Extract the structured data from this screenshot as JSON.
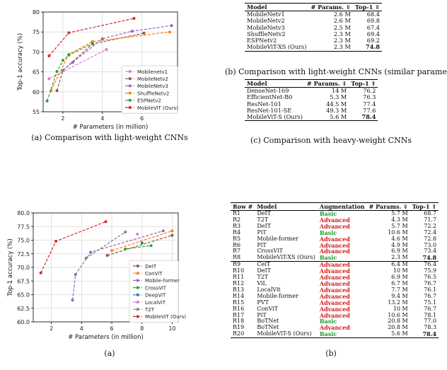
{
  "chart_data": [
    {
      "id": "a_top",
      "type": "line",
      "xlabel": "# Parameters (in million)",
      "ylabel": "Top-1 accuracy (%)",
      "xlim": [
        1,
        7.8
      ],
      "ylim": [
        55,
        80
      ],
      "xticks": [
        2,
        4,
        6
      ],
      "yticks": [
        55,
        60,
        65,
        70,
        75,
        80
      ],
      "tick_labels_x": [
        "2",
        "4",
        "6"
      ],
      "tick_labels_y": [
        "55",
        "60",
        "65",
        "70",
        "75",
        "80"
      ],
      "legend": "lower-right",
      "series": [
        {
          "name": "Mobilenetv1",
          "color": "#e377c2",
          "x": [
            1.3,
            4.2
          ],
          "y": [
            63.3,
            70.6
          ]
        },
        {
          "name": "MobileNetv2",
          "color": "#8c564b",
          "x": [
            1.7,
            2.0,
            3.5,
            6.1
          ],
          "y": [
            60.3,
            65.4,
            72.0,
            74.7
          ]
        },
        {
          "name": "MobileNetv3",
          "color": "#9467bd",
          "x": [
            2.0,
            2.5,
            4.0,
            5.5,
            7.5
          ],
          "y": [
            65.4,
            67.4,
            73.3,
            75.2,
            76.6
          ]
        },
        {
          "name": "ShuffleNetv2",
          "color": "#ff7f0e",
          "x": [
            1.4,
            2.3,
            3.5,
            7.4
          ],
          "y": [
            60.3,
            69.4,
            72.6,
            75.0
          ]
        },
        {
          "name": "ESPNetv2",
          "color": "#2ca02c",
          "x": [
            1.2,
            1.7,
            2.0,
            2.3,
            3.5
          ],
          "y": [
            57.7,
            65.1,
            67.9,
            69.2,
            72.1
          ]
        },
        {
          "name": "MobileViT (Ours)",
          "color": "#d62728",
          "x": [
            1.3,
            2.3,
            5.6
          ],
          "y": [
            69.0,
            74.8,
            78.4
          ]
        }
      ]
    },
    {
      "id": "a_bottom",
      "type": "line",
      "xlabel": "# Parameters (in million)",
      "ylabel": "Top-1 accuracy (%)",
      "xlim": [
        0.8,
        10.4
      ],
      "ylim": [
        60,
        80
      ],
      "xticks": [
        2,
        4,
        6,
        8,
        10
      ],
      "yticks": [
        60.0,
        62.5,
        65.0,
        67.5,
        70.0,
        72.5,
        75.0,
        77.5,
        80.0
      ],
      "tick_labels_x": [
        "2",
        "4",
        "6",
        "8",
        "10"
      ],
      "tick_labels_y": [
        "60.0",
        "62.5",
        "65.0",
        "67.5",
        "70.0",
        "72.5",
        "75.0",
        "77.5",
        "80.0"
      ],
      "legend": "lower-right",
      "series": [
        {
          "name": "DeIT",
          "color": "#8c564b",
          "x": [
            5.7,
            10.0
          ],
          "y": [
            72.2,
            75.9
          ]
        },
        {
          "name": "ConViT",
          "color": "#ff7f0e",
          "x": [
            6.0,
            10.0
          ],
          "y": [
            73.1,
            76.7
          ]
        },
        {
          "name": "Mobile-former",
          "color": "#9467bd",
          "x": [
            3.4,
            3.6,
            4.6,
            9.4
          ],
          "y": [
            64.0,
            68.7,
            72.8,
            76.7
          ]
        },
        {
          "name": "CrossViT",
          "color": "#2ca02c",
          "x": [
            6.9,
            8.6
          ],
          "y": [
            73.4,
            74.0
          ]
        },
        {
          "name": "DeepViT",
          "color": "#1f77b4",
          "x": [
            8.0
          ],
          "y": [
            74.5
          ]
        },
        {
          "name": "LocalViT",
          "color": "#e377c2",
          "x": [
            7.7
          ],
          "y": [
            76.1
          ]
        },
        {
          "name": "T2T",
          "color": "#7f7f7f",
          "x": [
            4.3,
            6.9
          ],
          "y": [
            71.7,
            76.5
          ]
        },
        {
          "name": "MobileViT (Ours)",
          "color": "#d62728",
          "x": [
            1.3,
            2.3,
            5.6
          ],
          "y": [
            69.0,
            74.8,
            78.4
          ]
        }
      ]
    }
  ],
  "captions": {
    "a_top": "(a) Comparison with light-weight CNNs",
    "b_top": "(b) Comparison with light-weight CNNs (similar parameters)",
    "c_top": "(c) Comparison with heavy-weight CNNs",
    "a_bottom": "(a)",
    "b_bottom": "(b)"
  },
  "table_b": {
    "headers": [
      "Model",
      "# Params. ⇓",
      "Top-1 ⇑"
    ],
    "rows": [
      [
        "MobileNetv1",
        "2.6 M",
        "68.4"
      ],
      [
        "MobileNetv2",
        "2.6 M",
        "69.8"
      ],
      [
        "MobileNetv3",
        "2.5 M",
        "67.4"
      ],
      [
        "ShuffleNetv2",
        "2.3 M",
        "69.4"
      ],
      [
        "ESPNetv2",
        "2.3 M",
        "69.2"
      ],
      [
        "MobileViT-XS (Ours)",
        "2.3 M",
        "74.8"
      ]
    ]
  },
  "table_c": {
    "headers": [
      "Model",
      "# Params. ⇓",
      "Top-1 ⇑"
    ],
    "rows": [
      [
        "DenseNet-169",
        "14 M",
        "76.2"
      ],
      [
        "EfficientNet-B0",
        "5.3 M",
        "76.3"
      ],
      [
        "ResNet-101",
        "44.5 M",
        "77.4"
      ],
      [
        "ResNet-101-SE",
        "49.3 M",
        "77.6"
      ],
      [
        "MobileViT-S (Ours)",
        "5.6 M",
        "78.4"
      ]
    ]
  },
  "table_d": {
    "headers": [
      "Row #",
      "Model",
      "Augmentation",
      "# Params. ⇓",
      "Top-1 ⇑"
    ],
    "rows": [
      [
        "R1",
        "DeIT",
        "Basic",
        "5.7 M",
        "68.7"
      ],
      [
        "R2",
        "T2T",
        "Advanced",
        "4.3 M",
        "71.7"
      ],
      [
        "R3",
        "DeIT",
        "Advanced",
        "5.7 M",
        "72.2"
      ],
      [
        "R4",
        "PiT",
        "Basic",
        "10.6 M",
        "72.4"
      ],
      [
        "R5",
        "Mobile-former",
        "Advanced",
        "4.6 M",
        "72.8"
      ],
      [
        "R6",
        "PiT",
        "Advanced",
        "4.9 M",
        "73.0"
      ],
      [
        "R7",
        "CrossViT",
        "Advanced",
        "6.9 M",
        "73.4"
      ],
      [
        "R8",
        "MobileViT-XS (Ours)",
        "Basic",
        "2.3 M",
        "74.8"
      ],
      [
        "R9",
        "CeiT",
        "Advanced",
        "6.4 M",
        "76.4"
      ],
      [
        "R10",
        "DeIT",
        "Advanced",
        "10 M",
        "75.9"
      ],
      [
        "R11",
        "T2T",
        "Advanced",
        "6.9 M",
        "76.5"
      ],
      [
        "R12",
        "ViL",
        "Advanced",
        "6.7 M",
        "76.7"
      ],
      [
        "R13",
        "LocalVit",
        "Advanced",
        "7.7 M",
        "76.1"
      ],
      [
        "R14",
        "Mobile-former",
        "Advanced",
        "9.4 M",
        "76.7"
      ],
      [
        "R15",
        "PVT",
        "Advanced",
        "13.2 M",
        "75.1"
      ],
      [
        "R16",
        "ConViT",
        "Advanced",
        "10 M",
        "76.7"
      ],
      [
        "R17",
        "PiT",
        "Advanced",
        "10.6 M",
        "78.1"
      ],
      [
        "R18",
        "BoTNet",
        "Basic",
        "20.8 M",
        "77.0"
      ],
      [
        "R19",
        "BoTNet",
        "Advanced",
        "20.8 M",
        "78.3"
      ],
      [
        "R20",
        "MobileViT-S (Ours)",
        "Basic",
        "5.6 M",
        "78.4"
      ]
    ]
  }
}
